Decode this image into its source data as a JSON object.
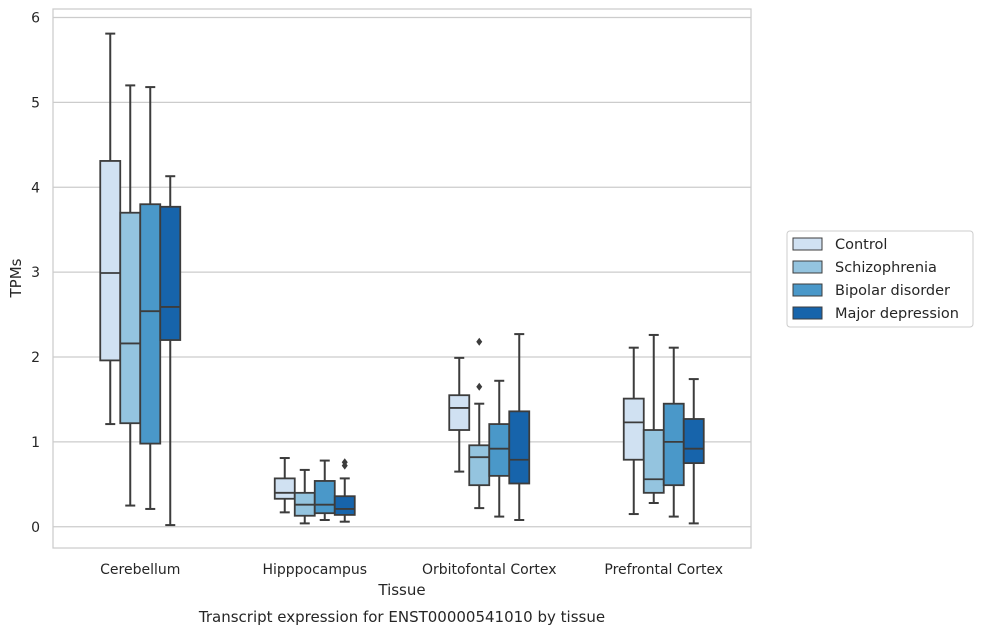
{
  "chart_data": {
    "type": "boxplot",
    "title": "",
    "caption": "Transcript expression for ENST00000541010 by tissue",
    "xlabel": "Tissue",
    "ylabel": "TPMs",
    "ylim": [
      -0.25,
      6.1
    ],
    "yticks": [
      0,
      1,
      2,
      3,
      4,
      5,
      6
    ],
    "grid": "horizontal",
    "legend_position": "right",
    "categories": [
      "Cerebellum",
      "Hipppocampus",
      "Orbitofontal Cortex",
      "Prefrontal Cortex"
    ],
    "series": [
      {
        "name": "Control",
        "color": "#d0e1f2",
        "boxes": [
          {
            "whisker_low": 1.21,
            "q1": 1.96,
            "median": 2.99,
            "q3": 4.31,
            "whisker_high": 5.81,
            "outliers": []
          },
          {
            "whisker_low": 0.17,
            "q1": 0.33,
            "median": 0.4,
            "q3": 0.57,
            "whisker_high": 0.81,
            "outliers": []
          },
          {
            "whisker_low": 0.65,
            "q1": 1.14,
            "median": 1.4,
            "q3": 1.55,
            "whisker_high": 1.99,
            "outliers": []
          },
          {
            "whisker_low": 0.15,
            "q1": 0.79,
            "median": 1.23,
            "q3": 1.51,
            "whisker_high": 2.11,
            "outliers": []
          }
        ]
      },
      {
        "name": "Schizophrenia",
        "color": "#94c4df",
        "boxes": [
          {
            "whisker_low": 0.25,
            "q1": 1.22,
            "median": 2.16,
            "q3": 3.7,
            "whisker_high": 5.2,
            "outliers": []
          },
          {
            "whisker_low": 0.04,
            "q1": 0.13,
            "median": 0.26,
            "q3": 0.4,
            "whisker_high": 0.67,
            "outliers": []
          },
          {
            "whisker_low": 0.22,
            "q1": 0.49,
            "median": 0.82,
            "q3": 0.96,
            "whisker_high": 1.45,
            "outliers": [
              1.65,
              2.18
            ]
          },
          {
            "whisker_low": 0.28,
            "q1": 0.4,
            "median": 0.56,
            "q3": 1.14,
            "whisker_high": 2.26,
            "outliers": []
          }
        ]
      },
      {
        "name": "Bipolar disorder",
        "color": "#4a98c9",
        "boxes": [
          {
            "whisker_low": 0.21,
            "q1": 0.98,
            "median": 2.54,
            "q3": 3.8,
            "whisker_high": 5.18,
            "outliers": []
          },
          {
            "whisker_low": 0.08,
            "q1": 0.16,
            "median": 0.26,
            "q3": 0.54,
            "whisker_high": 0.78,
            "outliers": []
          },
          {
            "whisker_low": 0.12,
            "q1": 0.6,
            "median": 0.92,
            "q3": 1.21,
            "whisker_high": 1.72,
            "outliers": []
          },
          {
            "whisker_low": 0.12,
            "q1": 0.49,
            "median": 1.0,
            "q3": 1.45,
            "whisker_high": 2.11,
            "outliers": []
          }
        ]
      },
      {
        "name": "Major depression",
        "color": "#1764ab",
        "boxes": [
          {
            "whisker_low": 0.02,
            "q1": 2.2,
            "median": 2.59,
            "q3": 3.77,
            "whisker_high": 4.13,
            "outliers": []
          },
          {
            "whisker_low": 0.06,
            "q1": 0.14,
            "median": 0.21,
            "q3": 0.36,
            "whisker_high": 0.57,
            "outliers": [
              0.72,
              0.76
            ]
          },
          {
            "whisker_low": 0.08,
            "q1": 0.51,
            "median": 0.79,
            "q3": 1.36,
            "whisker_high": 2.27,
            "outliers": []
          },
          {
            "whisker_low": 0.04,
            "q1": 0.75,
            "median": 0.92,
            "q3": 1.27,
            "whisker_high": 1.74,
            "outliers": []
          }
        ]
      }
    ]
  }
}
